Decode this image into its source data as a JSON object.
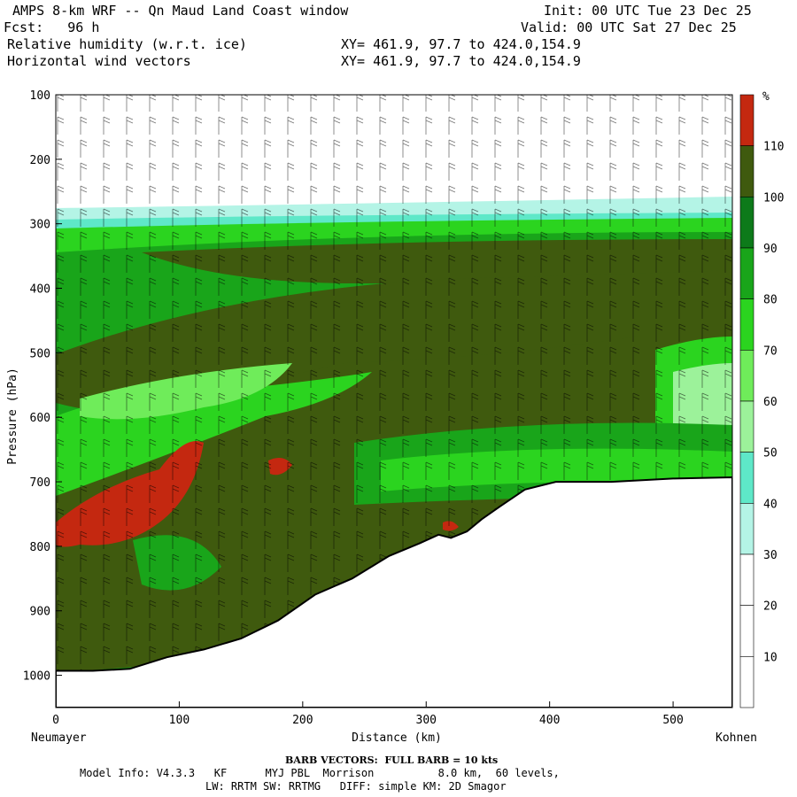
{
  "header": {
    "title": "AMPS 8-km WRF -- Qn Maud Land Coast window",
    "fcst": "Fcst:   96 h",
    "init": "Init: 00 UTC Tue 23 Dec 25",
    "valid": "Valid: 00 UTC Sat 27 Dec 25",
    "field1": "Relative humidity (w.r.t. ice)",
    "field2": "Horizontal wind vectors",
    "xy1": "XY= 461.9, 97.7 to 424.0,154.9",
    "xy2": "XY= 461.9, 97.7 to 424.0,154.9"
  },
  "footer": {
    "barb": "BARB VECTORS:  FULL BARB = 10 kts",
    "model1": "Model Info: V4.3.3   KF      MYJ PBL  Morrison          8.0 km,  60 levels,",
    "model2": "LW: RRTM SW: RRTMG   DIFF: simple KM: 2D Smagor"
  },
  "colorbar": {
    "unit": "%",
    "labels": [
      "110",
      "100",
      "90",
      "80",
      "70",
      "60",
      "50",
      "40",
      "30",
      "20",
      "10"
    ],
    "colors": [
      "#c42810",
      "#3f5a0e",
      "#0d7a1a",
      "#19a51a",
      "#2bd41f",
      "#6fec5a",
      "#9cf29a",
      "#5ee8c8",
      "#b4f4e6",
      "#ffffff",
      "#ffffff",
      "#ffffff"
    ]
  },
  "chart_data": {
    "type": "heatmap",
    "title": "Relative humidity (w.r.t. ice)",
    "xlabel": "Distance (km)",
    "ylabel": "Pressure (hPa)",
    "xlim": [
      0,
      548
    ],
    "ylim": [
      1050,
      100
    ],
    "x_ticks": [
      0,
      100,
      200,
      300,
      400,
      500
    ],
    "y_ticks": [
      100,
      200,
      300,
      400,
      500,
      600,
      700,
      800,
      900,
      1000
    ],
    "x_start_label": "Neumayer",
    "x_end_label": "Kohnen",
    "terrain_surface_pressure": [
      {
        "x": 0,
        "p": 993
      },
      {
        "x": 30,
        "p": 993
      },
      {
        "x": 60,
        "p": 990
      },
      {
        "x": 90,
        "p": 972
      },
      {
        "x": 120,
        "p": 960
      },
      {
        "x": 150,
        "p": 943
      },
      {
        "x": 180,
        "p": 915
      },
      {
        "x": 210,
        "p": 875
      },
      {
        "x": 240,
        "p": 850
      },
      {
        "x": 270,
        "p": 815
      },
      {
        "x": 295,
        "p": 795
      },
      {
        "x": 310,
        "p": 782
      },
      {
        "x": 320,
        "p": 787
      },
      {
        "x": 333,
        "p": 777
      },
      {
        "x": 345,
        "p": 758
      },
      {
        "x": 360,
        "p": 738
      },
      {
        "x": 380,
        "p": 712
      },
      {
        "x": 405,
        "p": 700
      },
      {
        "x": 450,
        "p": 700
      },
      {
        "x": 500,
        "p": 695
      },
      {
        "x": 548,
        "p": 693
      }
    ],
    "notes": "Moist layer (>90%) spans ~300-700 hPa across the section with saturated (>110%) pockets near 650-800 hPa at 0-130 km; air above ~270 hPa is dry (<10%)."
  }
}
